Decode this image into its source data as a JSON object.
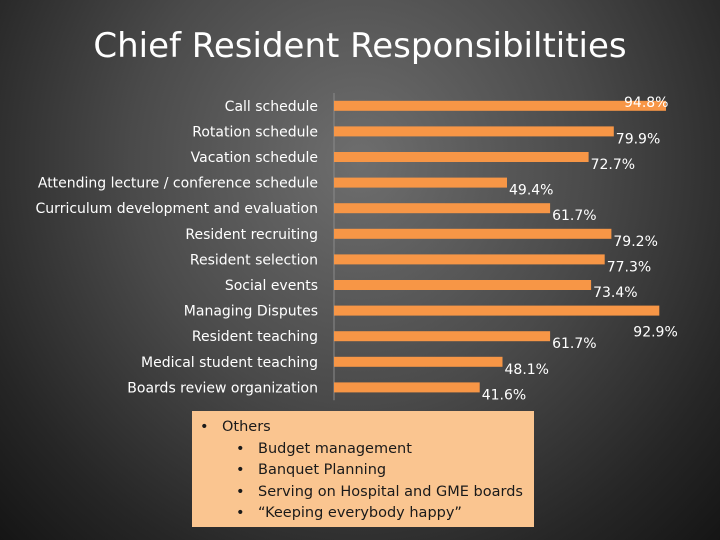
{
  "slide": {
    "title": "Chief Resident Responsibiltities"
  },
  "chart_data": {
    "type": "bar",
    "orientation": "horizontal",
    "categories": [
      "Call schedule",
      "Rotation schedule",
      "Vacation schedule",
      "Attending lecture / conference schedule",
      "Curriculum development and evaluation",
      "Resident recruiting",
      "Resident selection",
      "Social events",
      "Managing Disputes",
      "Resident teaching",
      "Medical student teaching",
      "Boards review organization"
    ],
    "values": [
      94.8,
      79.9,
      72.7,
      49.4,
      61.7,
      79.2,
      77.3,
      73.4,
      92.9,
      61.7,
      48.1,
      41.6
    ],
    "data_labels": [
      "94.8%",
      "79.9%",
      "72.7%",
      "49.4%",
      "61.7%",
      "79.2%",
      "77.3%",
      "73.4%",
      "92.9%",
      "61.7%",
      "48.1%",
      "41.6%"
    ],
    "xlim": [
      0,
      100
    ],
    "bar_color": "#f79646",
    "axis_color": "#8a8a8a",
    "label_color": "#ffffff",
    "grid": false,
    "legend": "none"
  },
  "others": {
    "heading": "Others",
    "items": [
      "Budget management",
      "Banquet Planning",
      "Serving on Hospital and GME boards",
      "“Keeping everybody happy”"
    ]
  }
}
